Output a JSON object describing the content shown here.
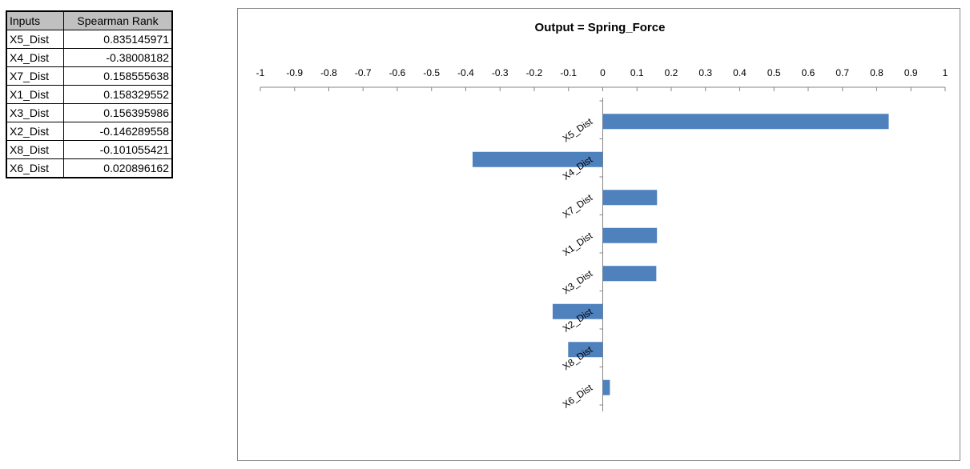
{
  "table": {
    "headers": [
      "Inputs",
      "Spearman Rank"
    ],
    "rows": [
      {
        "name": "X5_Dist",
        "value": "0.835145971"
      },
      {
        "name": "X4_Dist",
        "value": "-0.38008182"
      },
      {
        "name": "X7_Dist",
        "value": "0.158555638"
      },
      {
        "name": "X1_Dist",
        "value": "0.158329552"
      },
      {
        "name": "X3_Dist",
        "value": "0.156395986"
      },
      {
        "name": "X2_Dist",
        "value": "-0.146289558"
      },
      {
        "name": "X8_Dist",
        "value": "-0.101055421"
      },
      {
        "name": "X6_Dist",
        "value": "0.020896162"
      }
    ]
  },
  "chart_data": {
    "type": "bar",
    "orientation": "horizontal",
    "title": "Output = Spring_Force",
    "categories": [
      "X5_Dist",
      "X4_Dist",
      "X7_Dist",
      "X1_Dist",
      "X3_Dist",
      "X2_Dist",
      "X8_Dist",
      "X6_Dist"
    ],
    "values": [
      0.835145971,
      -0.38008182,
      0.158555638,
      0.158329552,
      0.156395986,
      -0.146289558,
      -0.101055421,
      0.020896162
    ],
    "xlim": [
      -1,
      1
    ],
    "ticks": [
      "-1",
      "-0.9",
      "-0.8",
      "-0.7",
      "-0.6",
      "-0.5",
      "-0.4",
      "-0.3",
      "-0.2",
      "-0.1",
      "0",
      "0.1",
      "0.2",
      "0.3",
      "0.4",
      "0.5",
      "0.6",
      "0.7",
      "0.8",
      "0.9",
      "1"
    ],
    "axis_position": "top",
    "grid": false,
    "legend": false,
    "bar_color": "#4f81bd"
  }
}
